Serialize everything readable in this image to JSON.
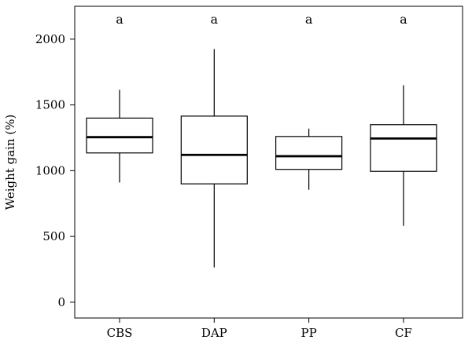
{
  "chart_data": {
    "type": "box",
    "title": "",
    "xlabel": "",
    "ylabel": "Weight gain (%)",
    "ylim": [
      -120,
      2250
    ],
    "yticks": [
      0,
      500,
      1000,
      1500,
      2000
    ],
    "grid": false,
    "legend": "none",
    "categories": [
      "CBS",
      "DAP",
      "PP",
      "CF"
    ],
    "boxes": [
      {
        "category": "CBS",
        "min": 910,
        "q1": 1135,
        "median": 1255,
        "q3": 1400,
        "max": 1615,
        "significance": "a"
      },
      {
        "category": "DAP",
        "min": 265,
        "q1": 900,
        "median": 1120,
        "q3": 1415,
        "max": 1925,
        "significance": "a"
      },
      {
        "category": "PP",
        "min": 855,
        "q1": 1010,
        "median": 1110,
        "q3": 1260,
        "max": 1320,
        "significance": "a"
      },
      {
        "category": "CF",
        "min": 580,
        "q1": 995,
        "median": 1245,
        "q3": 1350,
        "max": 1650,
        "significance": "a"
      }
    ],
    "colors": {
      "box_fill": "#ffffff",
      "stroke": "#000000"
    }
  }
}
